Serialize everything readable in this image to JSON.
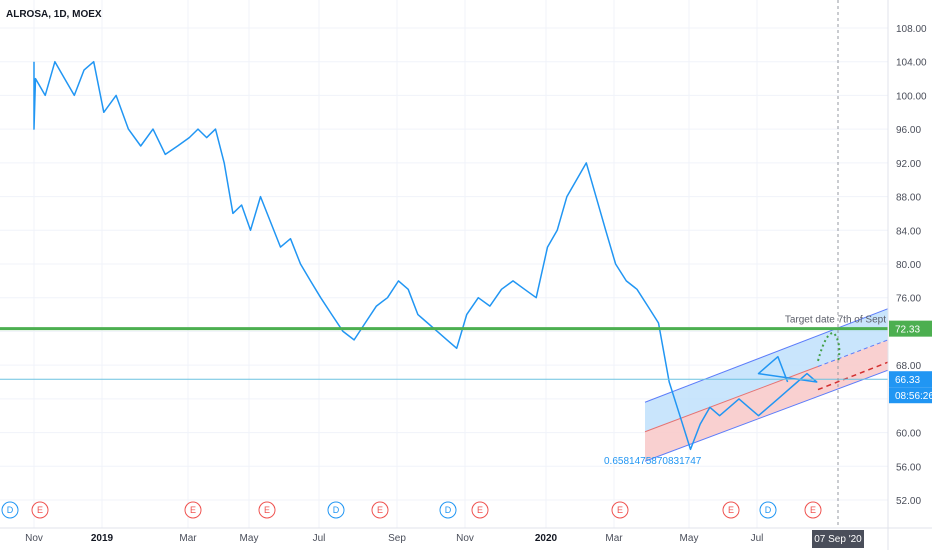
{
  "header": {
    "symbol_label": "ALROSA, 1D, MOEX"
  },
  "colors": {
    "price_line": "#2196f3",
    "support_line": "#4caf50",
    "current_line": "#6cc2e0",
    "channel_upper_fill": "#bbdefb",
    "channel_lower_fill": "#f8c8c8",
    "projection_dashed": "#d32f2f",
    "forecast_dots": "#43a047",
    "axis_text": "#4a4e5a"
  },
  "chart_data": {
    "type": "line",
    "title": "ALROSA, 1D, MOEX",
    "xlabel": "",
    "ylabel": "",
    "ylim": [
      50.0,
      110.0
    ],
    "y_ticks": [
      "108.00",
      "104.00",
      "100.00",
      "96.00",
      "92.00",
      "88.00",
      "84.00",
      "80.00",
      "76.00",
      "72.00",
      "68.00",
      "64.00",
      "60.00",
      "56.00",
      "52.00"
    ],
    "x_tick_labels": [
      {
        "label": "Nov",
        "bold": false
      },
      {
        "label": "2019",
        "bold": true
      },
      {
        "label": "Mar",
        "bold": false
      },
      {
        "label": "May",
        "bold": false
      },
      {
        "label": "Jul",
        "bold": false
      },
      {
        "label": "Sep",
        "bold": false
      },
      {
        "label": "Nov",
        "bold": false
      },
      {
        "label": "2020",
        "bold": true
      },
      {
        "label": "Mar",
        "bold": false
      },
      {
        "label": "May",
        "bold": false
      },
      {
        "label": "Jul",
        "bold": false
      }
    ],
    "x_months_start": "2018-10",
    "series": [
      {
        "name": "",
        "values": [
          104,
          100,
          98,
          96,
          102,
          100,
          104,
          102,
          100,
          103,
          104,
          98,
          100,
          96,
          94,
          96,
          93,
          94,
          95,
          96,
          95,
          96,
          92,
          86,
          87,
          84,
          88,
          85,
          82,
          83,
          80,
          78,
          76,
          74,
          72,
          71,
          73,
          75,
          76,
          78,
          77,
          74,
          73,
          72,
          71,
          70,
          74,
          76,
          75,
          77,
          78,
          77,
          76,
          82,
          84,
          88,
          90,
          92,
          88,
          84,
          80,
          78,
          77,
          75,
          73,
          66,
          62,
          58,
          61,
          63,
          62,
          63,
          64,
          63,
          62,
          63,
          64,
          65,
          66,
          67,
          66,
          67,
          68,
          69,
          66
        ]
      }
    ],
    "annotations": {
      "support_level": 72.33,
      "support_label": "72.33",
      "current_price": 66.33,
      "current_label": "66.33",
      "countdown_label": "08:56:26",
      "target_date_label": "07 Sep '20",
      "target_note": "Target date 7th of Sept",
      "channel_start_label": "0.6581475870831747",
      "channel": {
        "upper": [
          63.6,
          74.7
        ],
        "mid": [
          60.1,
          71.0
        ],
        "lower": [
          56.6,
          67.4
        ]
      }
    },
    "events": [
      {
        "kind": "D",
        "label": "D"
      },
      {
        "kind": "E",
        "label": "E"
      },
      {
        "kind": "E",
        "label": "E"
      },
      {
        "kind": "E",
        "label": "E"
      },
      {
        "kind": "D",
        "label": "D"
      },
      {
        "kind": "E",
        "label": "E"
      },
      {
        "kind": "D",
        "label": "D"
      },
      {
        "kind": "E",
        "label": "E"
      },
      {
        "kind": "E",
        "label": "E"
      },
      {
        "kind": "E",
        "label": "E"
      },
      {
        "kind": "D",
        "label": "D"
      },
      {
        "kind": "E",
        "label": "E"
      }
    ],
    "grid": true,
    "legend": "none"
  }
}
